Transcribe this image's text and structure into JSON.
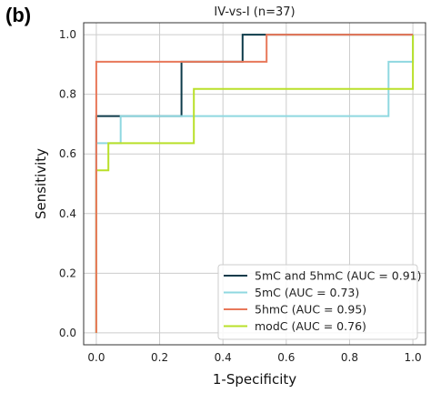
{
  "panel_label": "(b)",
  "chart_data": {
    "type": "line",
    "title": "IV-vs-I (n=37)",
    "xlabel": "1-Specificity",
    "ylabel": "Sensitivity",
    "xlim": [
      -0.04,
      1.04
    ],
    "ylim": [
      -0.04,
      1.04
    ],
    "xticks": [
      0.0,
      0.2,
      0.4,
      0.6,
      0.8,
      1.0
    ],
    "yticks": [
      0.0,
      0.2,
      0.4,
      0.6,
      0.8,
      1.0
    ],
    "xtick_labels": [
      "0.0",
      "0.2",
      "0.4",
      "0.6",
      "0.8",
      "1.0"
    ],
    "ytick_labels": [
      "0.0",
      "0.2",
      "0.4",
      "0.6",
      "0.8",
      "1.0"
    ],
    "grid": true,
    "legend_position": "lower-right",
    "series": [
      {
        "name": "5mC and 5hmC (AUC = 0.91)",
        "color": "#0d3b4a",
        "x": [
          0.0,
          0.0,
          0.077,
          0.077,
          0.269,
          0.269,
          0.462,
          0.462,
          0.538,
          0.538,
          1.0
        ],
        "y": [
          0.0,
          0.727,
          0.727,
          0.727,
          0.727,
          0.909,
          0.909,
          1.0,
          1.0,
          1.0,
          1.0
        ]
      },
      {
        "name": "5mC (AUC = 0.73)",
        "color": "#8fd8e0",
        "x": [
          0.0,
          0.0,
          0.077,
          0.077,
          0.923,
          0.923,
          1.0,
          1.0
        ],
        "y": [
          0.0,
          0.636,
          0.636,
          0.727,
          0.727,
          0.909,
          0.909,
          1.0
        ]
      },
      {
        "name": "5hmC (AUC = 0.95)",
        "color": "#e8785a",
        "x": [
          0.0,
          0.0,
          0.0,
          0.538,
          0.538,
          1.0
        ],
        "y": [
          0.0,
          0.545,
          0.909,
          0.909,
          1.0,
          1.0
        ]
      },
      {
        "name": "modC (AUC = 0.76)",
        "color": "#b9e02a",
        "x": [
          0.0,
          0.0,
          0.038,
          0.038,
          0.308,
          0.308,
          1.0,
          1.0
        ],
        "y": [
          0.0,
          0.545,
          0.545,
          0.636,
          0.636,
          0.818,
          0.818,
          1.0
        ]
      }
    ]
  }
}
